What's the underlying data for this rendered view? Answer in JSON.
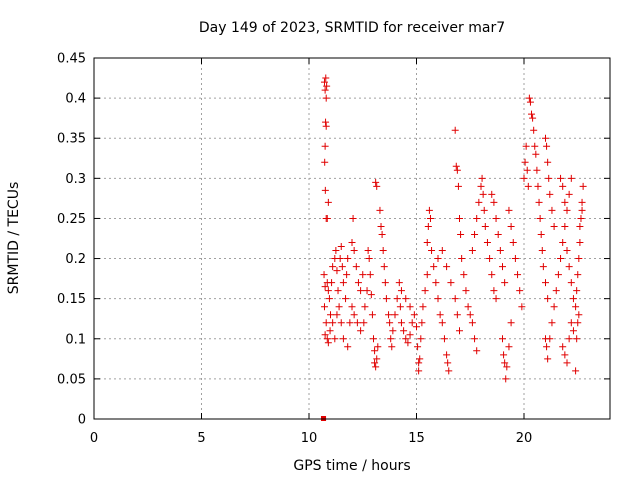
{
  "chart_data": {
    "type": "scatter",
    "title": "Day 149 of 2023, SRMTID for receiver mar7",
    "xlabel": "GPS time / hours",
    "ylabel": "SRMTID / TECUs",
    "xlim": [
      0,
      24
    ],
    "ylim": [
      0,
      0.45
    ],
    "x_ticks": [
      0,
      5,
      10,
      15,
      20
    ],
    "y_ticks": [
      0,
      0.05,
      0.1,
      0.15,
      0.2,
      0.25,
      0.3,
      0.35,
      0.4,
      0.45
    ],
    "x_tick_labels": [
      "0",
      "5",
      "10",
      "15",
      "20"
    ],
    "y_tick_labels": [
      "0",
      "0.05",
      "0.1",
      "0.15",
      "0.2",
      "0.25",
      "0.3",
      "0.35",
      "0.4",
      "0.45"
    ],
    "grid": true,
    "marker": "+",
    "color": "#e00000",
    "series": [
      {
        "name": "SRMTID",
        "points": [
          [
            10.65,
            0.0
          ],
          [
            10.7,
            0.0
          ],
          [
            10.72,
            0.42
          ],
          [
            10.75,
            0.41
          ],
          [
            10.78,
            0.425
          ],
          [
            10.8,
            0.4
          ],
          [
            10.82,
            0.415
          ],
          [
            10.77,
            0.37
          ],
          [
            10.8,
            0.365
          ],
          [
            10.75,
            0.34
          ],
          [
            10.73,
            0.32
          ],
          [
            10.76,
            0.285
          ],
          [
            10.8,
            0.25
          ],
          [
            10.85,
            0.25
          ],
          [
            10.9,
            0.27
          ],
          [
            10.7,
            0.18
          ],
          [
            10.75,
            0.165
          ],
          [
            10.85,
            0.17
          ],
          [
            10.9,
            0.16
          ],
          [
            10.95,
            0.15
          ],
          [
            10.72,
            0.14
          ],
          [
            10.8,
            0.12
          ],
          [
            10.75,
            0.105
          ],
          [
            10.85,
            0.1
          ],
          [
            10.9,
            0.095
          ],
          [
            10.98,
            0.11
          ],
          [
            11.0,
            0.13
          ],
          [
            11.05,
            0.17
          ],
          [
            11.1,
            0.19
          ],
          [
            11.2,
            0.2
          ],
          [
            11.25,
            0.21
          ],
          [
            11.3,
            0.185
          ],
          [
            11.35,
            0.16
          ],
          [
            11.4,
            0.14
          ],
          [
            11.45,
            0.2
          ],
          [
            11.5,
            0.215
          ],
          [
            11.55,
            0.19
          ],
          [
            11.6,
            0.17
          ],
          [
            11.7,
            0.15
          ],
          [
            11.75,
            0.18
          ],
          [
            11.8,
            0.2
          ],
          [
            11.1,
            0.12
          ],
          [
            11.2,
            0.1
          ],
          [
            11.3,
            0.13
          ],
          [
            11.5,
            0.12
          ],
          [
            11.6,
            0.1
          ],
          [
            11.8,
            0.09
          ],
          [
            11.9,
            0.12
          ],
          [
            12.0,
            0.22
          ],
          [
            12.05,
            0.25
          ],
          [
            12.1,
            0.21
          ],
          [
            12.2,
            0.19
          ],
          [
            12.3,
            0.17
          ],
          [
            12.4,
            0.16
          ],
          [
            12.5,
            0.18
          ],
          [
            12.0,
            0.14
          ],
          [
            12.1,
            0.13
          ],
          [
            12.25,
            0.12
          ],
          [
            12.4,
            0.11
          ],
          [
            12.55,
            0.12
          ],
          [
            12.6,
            0.14
          ],
          [
            12.7,
            0.16
          ],
          [
            12.75,
            0.21
          ],
          [
            12.8,
            0.2
          ],
          [
            12.85,
            0.18
          ],
          [
            12.9,
            0.155
          ],
          [
            12.95,
            0.13
          ],
          [
            13.0,
            0.1
          ],
          [
            13.05,
            0.085
          ],
          [
            13.05,
            0.07
          ],
          [
            13.1,
            0.065
          ],
          [
            13.15,
            0.075
          ],
          [
            13.2,
            0.09
          ],
          [
            13.1,
            0.295
          ],
          [
            13.15,
            0.29
          ],
          [
            13.3,
            0.26
          ],
          [
            13.35,
            0.24
          ],
          [
            13.4,
            0.23
          ],
          [
            13.45,
            0.21
          ],
          [
            13.5,
            0.19
          ],
          [
            13.55,
            0.17
          ],
          [
            13.6,
            0.15
          ],
          [
            13.7,
            0.13
          ],
          [
            13.75,
            0.12
          ],
          [
            13.8,
            0.1
          ],
          [
            13.85,
            0.09
          ],
          [
            13.9,
            0.11
          ],
          [
            14.0,
            0.13
          ],
          [
            14.1,
            0.15
          ],
          [
            14.2,
            0.17
          ],
          [
            14.25,
            0.14
          ],
          [
            14.3,
            0.12
          ],
          [
            14.4,
            0.11
          ],
          [
            14.5,
            0.1
          ],
          [
            14.6,
            0.095
          ],
          [
            14.7,
            0.105
          ],
          [
            14.8,
            0.12
          ],
          [
            14.3,
            0.16
          ],
          [
            14.5,
            0.15
          ],
          [
            14.7,
            0.14
          ],
          [
            14.9,
            0.13
          ],
          [
            15.0,
            0.115
          ],
          [
            15.05,
            0.09
          ],
          [
            15.1,
            0.07
          ],
          [
            15.1,
            0.06
          ],
          [
            15.15,
            0.075
          ],
          [
            15.2,
            0.1
          ],
          [
            15.25,
            0.12
          ],
          [
            15.3,
            0.14
          ],
          [
            15.4,
            0.16
          ],
          [
            15.5,
            0.18
          ],
          [
            15.5,
            0.22
          ],
          [
            15.55,
            0.24
          ],
          [
            15.6,
            0.26
          ],
          [
            15.65,
            0.25
          ],
          [
            15.7,
            0.21
          ],
          [
            15.8,
            0.19
          ],
          [
            15.9,
            0.17
          ],
          [
            16.0,
            0.15
          ],
          [
            16.1,
            0.13
          ],
          [
            16.2,
            0.12
          ],
          [
            16.3,
            0.1
          ],
          [
            16.4,
            0.08
          ],
          [
            16.45,
            0.07
          ],
          [
            16.5,
            0.06
          ],
          [
            16.0,
            0.2
          ],
          [
            16.2,
            0.21
          ],
          [
            16.4,
            0.19
          ],
          [
            16.6,
            0.17
          ],
          [
            16.8,
            0.15
          ],
          [
            16.9,
            0.13
          ],
          [
            17.0,
            0.11
          ],
          [
            16.8,
            0.36
          ],
          [
            16.85,
            0.315
          ],
          [
            16.9,
            0.31
          ],
          [
            16.95,
            0.29
          ],
          [
            17.0,
            0.25
          ],
          [
            17.05,
            0.23
          ],
          [
            17.1,
            0.2
          ],
          [
            17.2,
            0.18
          ],
          [
            17.3,
            0.16
          ],
          [
            17.4,
            0.14
          ],
          [
            17.5,
            0.13
          ],
          [
            17.6,
            0.12
          ],
          [
            17.7,
            0.1
          ],
          [
            17.8,
            0.085
          ],
          [
            17.6,
            0.21
          ],
          [
            17.7,
            0.23
          ],
          [
            17.8,
            0.25
          ],
          [
            17.9,
            0.27
          ],
          [
            18.0,
            0.29
          ],
          [
            18.05,
            0.3
          ],
          [
            18.1,
            0.28
          ],
          [
            18.15,
            0.26
          ],
          [
            18.2,
            0.24
          ],
          [
            18.3,
            0.22
          ],
          [
            18.4,
            0.2
          ],
          [
            18.5,
            0.18
          ],
          [
            18.6,
            0.16
          ],
          [
            18.7,
            0.15
          ],
          [
            18.5,
            0.28
          ],
          [
            18.6,
            0.27
          ],
          [
            18.7,
            0.25
          ],
          [
            18.8,
            0.23
          ],
          [
            18.9,
            0.21
          ],
          [
            19.0,
            0.19
          ],
          [
            19.1,
            0.17
          ],
          [
            19.0,
            0.1
          ],
          [
            19.05,
            0.08
          ],
          [
            19.1,
            0.07
          ],
          [
            19.15,
            0.05
          ],
          [
            19.2,
            0.065
          ],
          [
            19.3,
            0.09
          ],
          [
            19.4,
            0.12
          ],
          [
            19.3,
            0.26
          ],
          [
            19.4,
            0.24
          ],
          [
            19.5,
            0.22
          ],
          [
            19.6,
            0.2
          ],
          [
            19.7,
            0.18
          ],
          [
            19.8,
            0.16
          ],
          [
            19.9,
            0.14
          ],
          [
            20.0,
            0.3
          ],
          [
            20.05,
            0.32
          ],
          [
            20.1,
            0.34
          ],
          [
            20.15,
            0.31
          ],
          [
            20.2,
            0.29
          ],
          [
            20.25,
            0.4
          ],
          [
            20.3,
            0.395
          ],
          [
            20.35,
            0.38
          ],
          [
            20.4,
            0.375
          ],
          [
            20.45,
            0.36
          ],
          [
            20.5,
            0.34
          ],
          [
            20.55,
            0.33
          ],
          [
            20.6,
            0.31
          ],
          [
            20.65,
            0.29
          ],
          [
            20.7,
            0.27
          ],
          [
            20.75,
            0.25
          ],
          [
            20.8,
            0.23
          ],
          [
            20.85,
            0.21
          ],
          [
            20.9,
            0.19
          ],
          [
            21.0,
            0.17
          ],
          [
            21.1,
            0.15
          ],
          [
            21.0,
            0.35
          ],
          [
            21.05,
            0.34
          ],
          [
            21.1,
            0.32
          ],
          [
            21.15,
            0.3
          ],
          [
            21.2,
            0.28
          ],
          [
            21.3,
            0.26
          ],
          [
            21.4,
            0.24
          ],
          [
            21.0,
            0.1
          ],
          [
            21.05,
            0.09
          ],
          [
            21.1,
            0.075
          ],
          [
            21.2,
            0.1
          ],
          [
            21.3,
            0.12
          ],
          [
            21.4,
            0.14
          ],
          [
            21.5,
            0.16
          ],
          [
            21.6,
            0.18
          ],
          [
            21.7,
            0.2
          ],
          [
            21.8,
            0.22
          ],
          [
            21.9,
            0.24
          ],
          [
            22.0,
            0.26
          ],
          [
            22.1,
            0.28
          ],
          [
            22.2,
            0.3
          ],
          [
            21.7,
            0.3
          ],
          [
            21.8,
            0.29
          ],
          [
            21.9,
            0.27
          ],
          [
            22.0,
            0.21
          ],
          [
            22.1,
            0.19
          ],
          [
            22.2,
            0.17
          ],
          [
            22.3,
            0.15
          ],
          [
            21.8,
            0.09
          ],
          [
            21.9,
            0.08
          ],
          [
            22.0,
            0.07
          ],
          [
            22.1,
            0.1
          ],
          [
            22.2,
            0.12
          ],
          [
            22.3,
            0.11
          ],
          [
            22.4,
            0.06
          ],
          [
            22.4,
            0.14
          ],
          [
            22.45,
            0.16
          ],
          [
            22.5,
            0.18
          ],
          [
            22.55,
            0.2
          ],
          [
            22.6,
            0.22
          ],
          [
            22.65,
            0.25
          ],
          [
            22.7,
            0.27
          ],
          [
            22.75,
            0.29
          ],
          [
            22.7,
            0.26
          ],
          [
            22.6,
            0.24
          ],
          [
            22.55,
            0.13
          ],
          [
            22.5,
            0.12
          ],
          [
            22.45,
            0.1
          ]
        ]
      }
    ]
  }
}
